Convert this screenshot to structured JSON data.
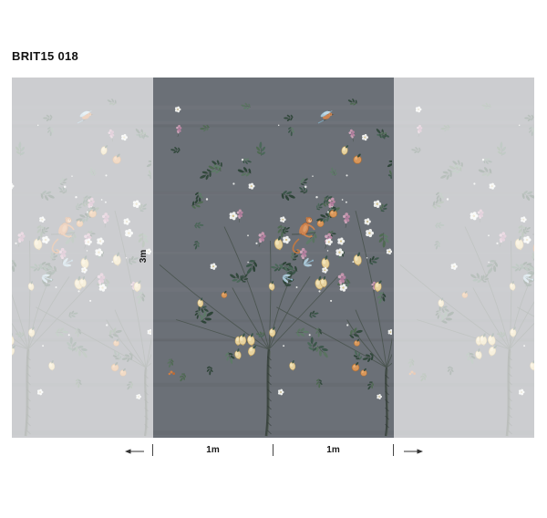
{
  "title": "BRIT15 018",
  "dimensions": {
    "height": "3m",
    "width_segments": [
      "1m",
      "1m"
    ]
  },
  "colors": {
    "page_background": "#ffffff",
    "mural_background": "#6b7077",
    "faded_overlay": "#ffffff",
    "annotation_text": "#1a1a1a",
    "leaf_green": "#42584a",
    "lemon_yellow": "#e7d29e",
    "orange_fruit": "#d9975a",
    "blossom_white": "#f4f5f2",
    "pink_flower": "#c997b0",
    "blue_accent": "#a9c9da",
    "monkey_orange": "#cd8350"
  }
}
